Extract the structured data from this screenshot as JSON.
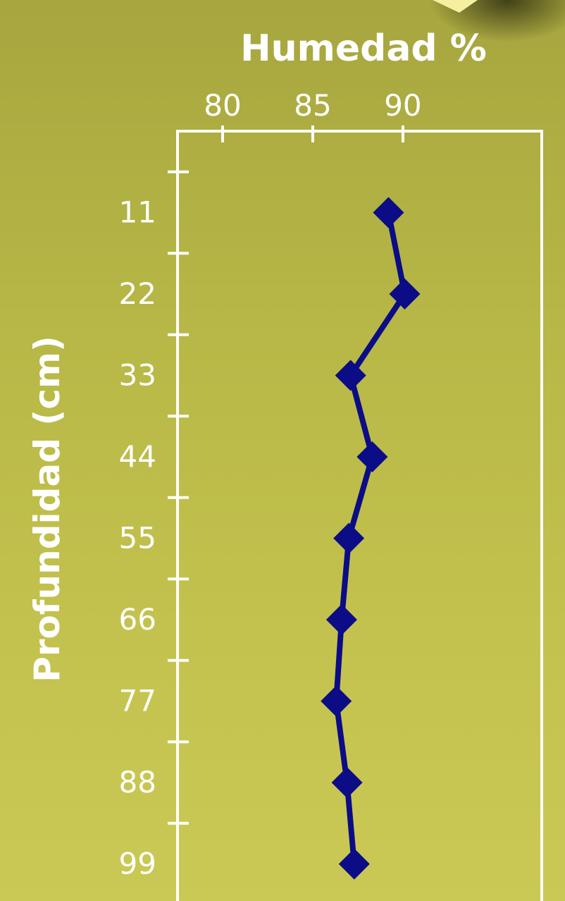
{
  "chart_data": {
    "type": "line",
    "xlabel": "Humedad %",
    "ylabel": "Profundidad (cm)",
    "x_axis_position": "top",
    "y_axis_inverted": true,
    "xlim": [
      77.5,
      97.7
    ],
    "ylim": [
      0,
      104
    ],
    "x_ticks": [
      80,
      85,
      90
    ],
    "y_ticks": [
      11,
      22,
      33,
      44,
      55,
      66,
      77,
      88,
      99
    ],
    "grid": false,
    "legend": "none",
    "series": [
      {
        "points": [
          {
            "x": 89.2,
            "y": 11
          },
          {
            "x": 90.1,
            "y": 22
          },
          {
            "x": 87.1,
            "y": 33
          },
          {
            "x": 88.3,
            "y": 44
          },
          {
            "x": 87.0,
            "y": 55
          },
          {
            "x": 86.6,
            "y": 66
          },
          {
            "x": 86.3,
            "y": 77
          },
          {
            "x": 86.9,
            "y": 88
          },
          {
            "x": 87.3,
            "y": 99
          }
        ]
      }
    ],
    "colors": {
      "line": "#0b0c86",
      "marker": "#0b0c86",
      "axis": "#ffffff",
      "text": "#ffffff"
    }
  }
}
